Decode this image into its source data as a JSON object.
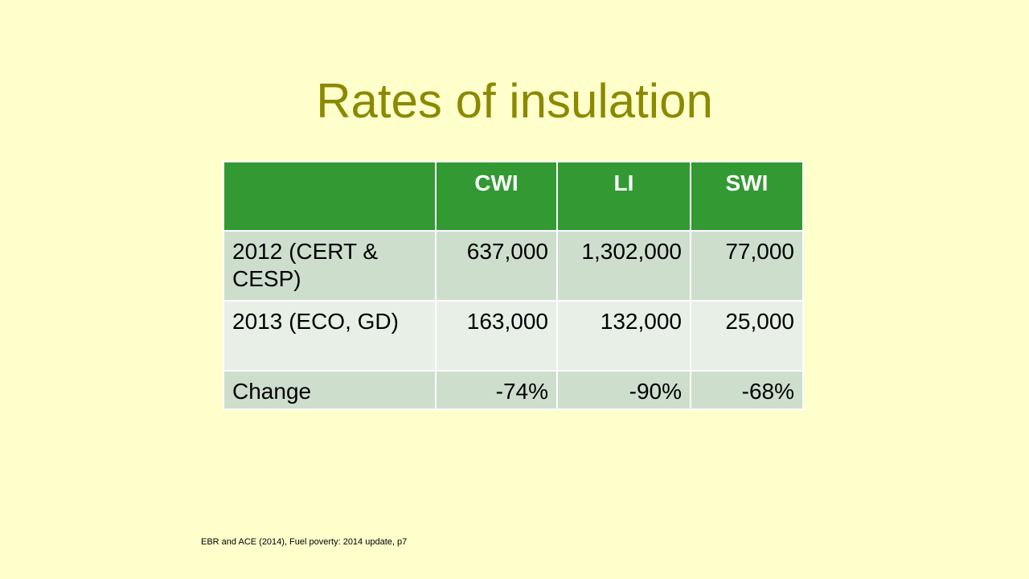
{
  "title": "Rates of insulation",
  "table": {
    "headers": [
      "",
      "CWI",
      "LI",
      "SWI"
    ],
    "rows": [
      {
        "label": "2012 (CERT & CESP)",
        "cwi": "637,000",
        "li": "1,302,000",
        "swi": "77,000"
      },
      {
        "label": "2013 (ECO, GD)",
        "cwi": "163,000",
        "li": "132,000",
        "swi": "25,000"
      },
      {
        "label": "Change",
        "cwi": "-74%",
        "li": "-90%",
        "swi": "-68%"
      }
    ]
  },
  "citation": "EBR and ACE (2014), Fuel poverty: 2014 update, p7",
  "colors": {
    "background": "#ffffcc",
    "title": "#8a8a00",
    "header": "#339933",
    "row_dark": "#cddecd",
    "row_light": "#e7efe7"
  }
}
